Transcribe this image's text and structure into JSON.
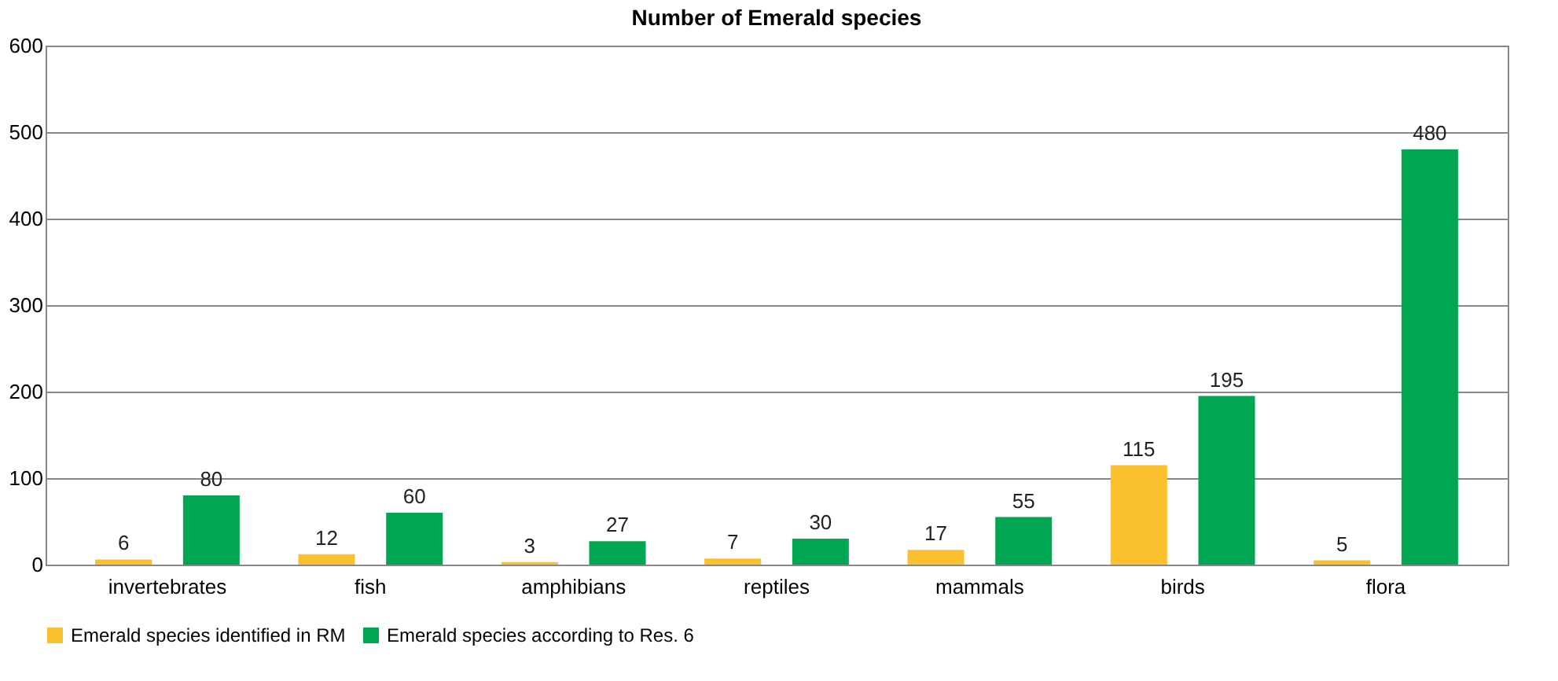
{
  "chart_data": {
    "type": "bar",
    "title": "Number of Emerald species",
    "categories": [
      "invertebrates",
      "fish",
      "amphibians",
      "reptiles",
      "mammals",
      "birds",
      "flora"
    ],
    "series": [
      {
        "name": "Emerald species identified in RM",
        "color": "#fbc02d",
        "values": [
          6,
          12,
          3,
          7,
          17,
          115,
          5
        ]
      },
      {
        "name": "Emerald species according to Res. 6",
        "color": "#00a651",
        "values": [
          80,
          60,
          27,
          30,
          55,
          195,
          480
        ]
      }
    ],
    "ylim": [
      0,
      600
    ],
    "yticks": [
      0,
      100,
      200,
      300,
      400,
      500,
      600
    ],
    "grid": "y",
    "legend": "bottom",
    "data_labels": true
  }
}
